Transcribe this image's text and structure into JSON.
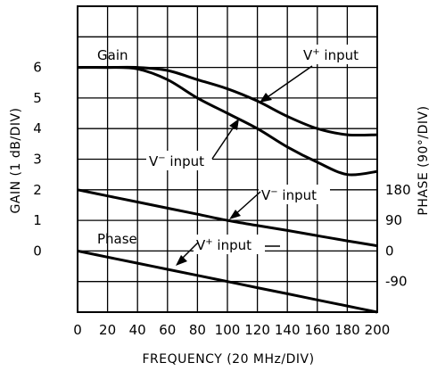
{
  "chart_data": {
    "type": "line",
    "title": "",
    "xlabel": "FREQUENCY (20 MHz/DIV)",
    "ylabel_left": "GAIN (1 dB/DIV)",
    "ylabel_right": "PHASE (90°/DIV)",
    "xlim": [
      0,
      200
    ],
    "ylim": [
      -2,
      8
    ],
    "x_ticks": [
      "0",
      "20",
      "40",
      "60",
      "80",
      "100",
      "120",
      "140",
      "160",
      "180",
      "200"
    ],
    "y_ticks_left": [
      "0",
      "1",
      "2",
      "3",
      "4",
      "5",
      "6"
    ],
    "y_ticks_right": [
      "180",
      "90",
      "0",
      "-90"
    ],
    "grid": true,
    "series": [
      {
        "name": "V+ input",
        "group": "Gain",
        "x": [
          0,
          20,
          40,
          60,
          80,
          100,
          120,
          140,
          160,
          180,
          200
        ],
        "values": [
          6.0,
          6.0,
          6.0,
          5.9,
          5.6,
          5.3,
          4.9,
          4.4,
          4.0,
          3.8,
          3.8
        ]
      },
      {
        "name": "V- input",
        "group": "Gain",
        "x": [
          0,
          20,
          40,
          60,
          80,
          100,
          120,
          140,
          160,
          180,
          200
        ],
        "values": [
          6.0,
          6.0,
          5.95,
          5.6,
          5.0,
          4.5,
          4.0,
          3.4,
          2.9,
          2.5,
          2.6
        ]
      },
      {
        "name": "V- input",
        "group": "Phase",
        "phase_deg": [
          180,
          162,
          144,
          126,
          108,
          90,
          75,
          60,
          45,
          30,
          15
        ],
        "x": [
          0,
          20,
          40,
          60,
          80,
          100,
          120,
          140,
          160,
          180,
          200
        ],
        "values": [
          2.0,
          1.8,
          1.6,
          1.4,
          1.2,
          1.0,
          0.83,
          0.67,
          0.5,
          0.33,
          0.17
        ]
      },
      {
        "name": "V+ input",
        "group": "Phase",
        "phase_deg": [
          0,
          -18,
          -36,
          -54,
          -72,
          -90,
          -108,
          -126,
          -144,
          -162,
          -180
        ],
        "x": [
          0,
          20,
          40,
          60,
          80,
          100,
          120,
          140,
          160,
          180,
          200
        ],
        "values": [
          0.0,
          -0.2,
          -0.4,
          -0.6,
          -0.8,
          -1.0,
          -1.2,
          -1.4,
          -1.6,
          -1.8,
          -2.0
        ]
      }
    ],
    "annotations": {
      "gain_label": "Gain",
      "phase_label": "Phase",
      "vplus_gain_prefix": "V",
      "vplus_gain_sup": "+",
      "vplus_gain_suffix": " input",
      "vminus_gain_prefix": "V",
      "vminus_gain_sup": "−",
      "vminus_gain_suffix": " input",
      "vminus_phase_prefix": "V",
      "vminus_phase_sup": "−",
      "vminus_phase_suffix": " input",
      "vplus_phase_prefix": "V",
      "vplus_phase_sup": "+",
      "vplus_phase_suffix": " input"
    }
  }
}
